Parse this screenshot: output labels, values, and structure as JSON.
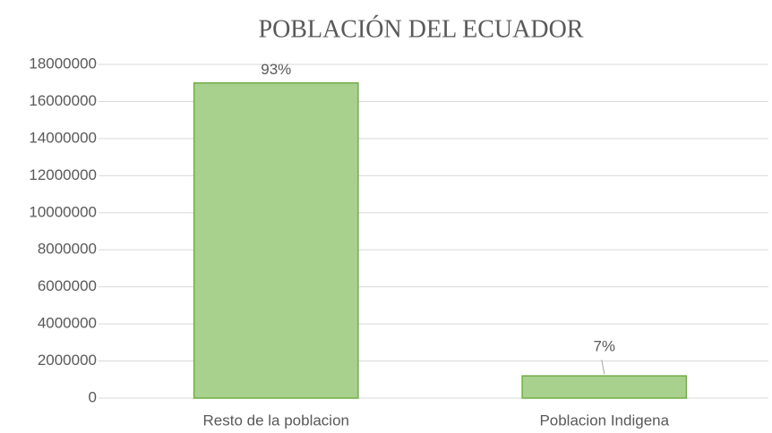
{
  "chart_data": {
    "type": "bar",
    "title": "POBLACIÓN DEL ECUADOR",
    "categories": [
      "Resto de la poblacion",
      "Poblacion Indigena"
    ],
    "values": [
      17000000,
      1200000
    ],
    "annotations": [
      "93%",
      "7%"
    ],
    "color": "#a9d18e",
    "edge_color": "#70ad47",
    "ylim": [
      0,
      18000000
    ],
    "yticks": [
      0,
      2000000,
      4000000,
      6000000,
      8000000,
      10000000,
      12000000,
      14000000,
      16000000,
      18000000
    ],
    "grid": true
  }
}
